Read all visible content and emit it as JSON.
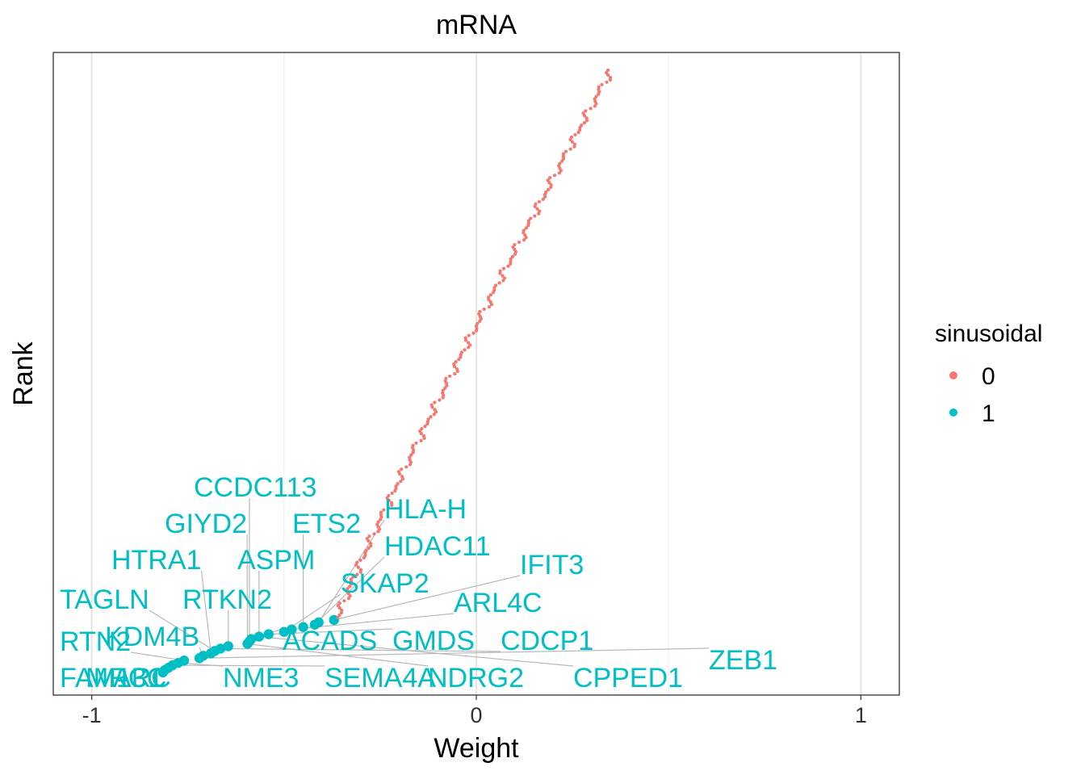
{
  "chart_data": {
    "type": "scatter",
    "title": "mRNA",
    "xlabel": "Weight",
    "ylabel": "Rank",
    "xlim": [
      -1.1,
      1.1
    ],
    "x_ticks": [
      -1,
      0,
      1
    ],
    "x_tick_labels": [
      "-1",
      "0",
      "1"
    ],
    "y_ticks_shown": false,
    "grid": true,
    "legend": {
      "title": "sinusoidal",
      "position": "right",
      "entries": [
        {
          "label": "0",
          "color": "#F8766D"
        },
        {
          "label": "1",
          "color": "#00BFC4"
        }
      ]
    },
    "series": [
      {
        "name": "0",
        "color": "#F8766D",
        "point_size": "small",
        "x_start": -0.36,
        "x_end": 0.35,
        "count": 230
      },
      {
        "name": "1",
        "color": "#00BFC4",
        "point_size": "large",
        "points": [
          {
            "x": -0.815,
            "rank": 1
          },
          {
            "x": -0.81,
            "rank": 2
          },
          {
            "x": -0.8,
            "rank": 3
          },
          {
            "x": -0.79,
            "rank": 4
          },
          {
            "x": -0.775,
            "rank": 5
          },
          {
            "x": -0.76,
            "rank": 6
          },
          {
            "x": -0.72,
            "rank": 7
          },
          {
            "x": -0.71,
            "rank": 8
          },
          {
            "x": -0.69,
            "rank": 9
          },
          {
            "x": -0.68,
            "rank": 10
          },
          {
            "x": -0.665,
            "rank": 11
          },
          {
            "x": -0.645,
            "rank": 12
          },
          {
            "x": -0.595,
            "rank": 13
          },
          {
            "x": -0.59,
            "rank": 14
          },
          {
            "x": -0.585,
            "rank": 15
          },
          {
            "x": -0.565,
            "rank": 16
          },
          {
            "x": -0.54,
            "rank": 17
          },
          {
            "x": -0.5,
            "rank": 18
          },
          {
            "x": -0.48,
            "rank": 19
          },
          {
            "x": -0.45,
            "rank": 20
          },
          {
            "x": -0.42,
            "rank": 21
          },
          {
            "x": -0.41,
            "rank": 22
          },
          {
            "x": -0.37,
            "rank": 23
          }
        ]
      }
    ],
    "labels": [
      {
        "text": "CCDC113"
      },
      {
        "text": "GIYD2"
      },
      {
        "text": "ETS2"
      },
      {
        "text": "HLA-H"
      },
      {
        "text": "HTRA1"
      },
      {
        "text": "ASPM"
      },
      {
        "text": "HDAC11"
      },
      {
        "text": "IFIT3"
      },
      {
        "text": "TAGLN"
      },
      {
        "text": "RTKN2"
      },
      {
        "text": "SKAP2"
      },
      {
        "text": "ARL4C"
      },
      {
        "text": "KDM4B"
      },
      {
        "text": "RTN2"
      },
      {
        "text": "ACADS"
      },
      {
        "text": "GMDS"
      },
      {
        "text": "CDCP1"
      },
      {
        "text": "ZEB1"
      },
      {
        "text": "FAM13C"
      },
      {
        "text": "MRC1"
      },
      {
        "text": "ARC"
      },
      {
        "text": "NME3"
      },
      {
        "text": "SEMA4A"
      },
      {
        "text": "NDRG2"
      },
      {
        "text": "CPPED1"
      }
    ]
  }
}
